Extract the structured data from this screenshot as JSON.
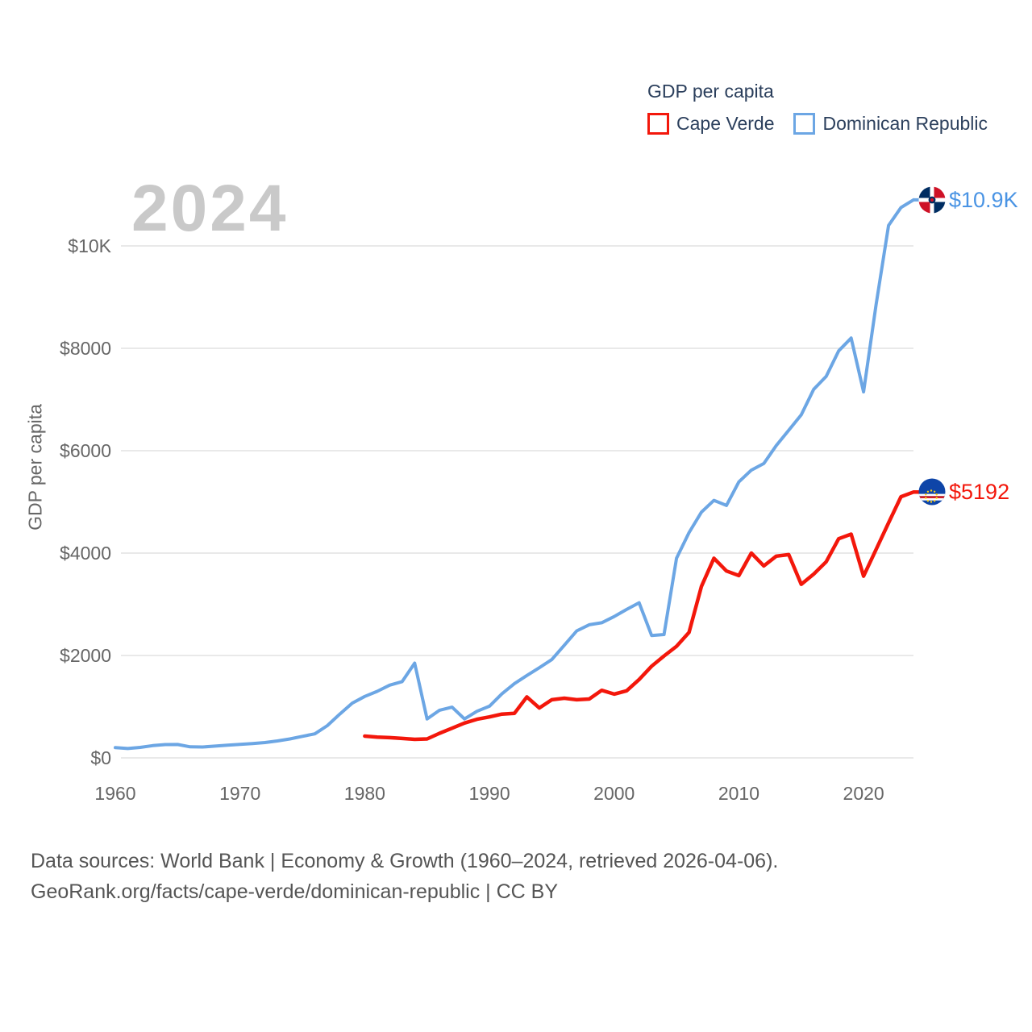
{
  "watermark": "2024",
  "legend": {
    "title": "GDP per capita",
    "items": [
      {
        "label": "Cape Verde",
        "color": "#f3170b"
      },
      {
        "label": "Dominican Republic",
        "color": "#6ca6e4"
      }
    ]
  },
  "footer": {
    "line1": "Data sources: World Bank | Economy & Growth (1960–2024, retrieved 2026-04-06).",
    "line2": "GeoRank.org/facts/cape-verde/dominican-republic | CC BY"
  },
  "colors": {
    "background": "#ffffff",
    "grid": "#e9e9e9",
    "axis_text": "#666666",
    "legend_text": "#2b3f5c",
    "footer_text": "#555555",
    "watermark": "#c9c9c9"
  },
  "flags": {
    "dominican_republic": {
      "navy": "#002d62",
      "red": "#ce1126",
      "white": "#ffffff"
    },
    "cape_verde": {
      "blue": "#0e45a8",
      "red": "#cf2027",
      "white": "#ffffff",
      "yellow": "#ffd116"
    }
  },
  "chart_data": {
    "type": "line",
    "title": "GDP per capita",
    "ylabel": "GDP per capita",
    "x_range": [
      1960,
      2024
    ],
    "ylim": [
      0,
      10900
    ],
    "grid": "horizontal",
    "legend_position": "top-right",
    "y_ticks": [
      {
        "value": 0,
        "label": "$0"
      },
      {
        "value": 2000,
        "label": "$2000"
      },
      {
        "value": 4000,
        "label": "$4000"
      },
      {
        "value": 6000,
        "label": "$6000"
      },
      {
        "value": 8000,
        "label": "$8000"
      },
      {
        "value": 10000,
        "label": "$10K"
      }
    ],
    "x_ticks": [
      {
        "value": 1960,
        "label": "1960"
      },
      {
        "value": 1970,
        "label": "1970"
      },
      {
        "value": 1980,
        "label": "1980"
      },
      {
        "value": 1990,
        "label": "1990"
      },
      {
        "value": 2000,
        "label": "2000"
      },
      {
        "value": 2010,
        "label": "2010"
      },
      {
        "value": 2020,
        "label": "2020"
      }
    ],
    "series": [
      {
        "id": "cape-verde",
        "name": "Cape Verde",
        "color": "#f3170b",
        "label_color": "#f3170b",
        "width": 4.5,
        "start_year": 1980,
        "end_year": 2024,
        "end_label": "$5192",
        "end_value": 5192,
        "values": [
          425,
          405,
          395,
          380,
          362,
          370,
          480,
          580,
          680,
          755,
          800,
          855,
          870,
          1190,
          975,
          1135,
          1165,
          1135,
          1150,
          1320,
          1245,
          1310,
          1530,
          1790,
          1990,
          2180,
          2450,
          3350,
          3900,
          3650,
          3560,
          4000,
          3750,
          3940,
          3970,
          3390,
          3590,
          3830,
          4280,
          4370,
          3550,
          4070,
          4590,
          5100,
          5192
        ]
      },
      {
        "id": "dominican-republic",
        "name": "Dominican Republic",
        "color": "#6ca6e4",
        "label_color": "#4a94e4",
        "width": 4,
        "start_year": 1960,
        "end_year": 2024,
        "end_label": "$10.9K",
        "end_value": 10900,
        "values": [
          200,
          183,
          205,
          240,
          260,
          262,
          215,
          212,
          230,
          248,
          265,
          280,
          300,
          330,
          370,
          420,
          470,
          630,
          855,
          1070,
          1200,
          1300,
          1420,
          1490,
          1850,
          760,
          930,
          990,
          760,
          910,
          1010,
          1250,
          1450,
          1610,
          1760,
          1920,
          2200,
          2480,
          2600,
          2640,
          2760,
          2900,
          3030,
          2390,
          2410,
          3900,
          4400,
          4800,
          5030,
          4930,
          5390,
          5620,
          5750,
          6100,
          6400,
          6700,
          7200,
          7450,
          7950,
          8200,
          7150,
          8850,
          10400,
          10750,
          10900
        ]
      }
    ]
  }
}
